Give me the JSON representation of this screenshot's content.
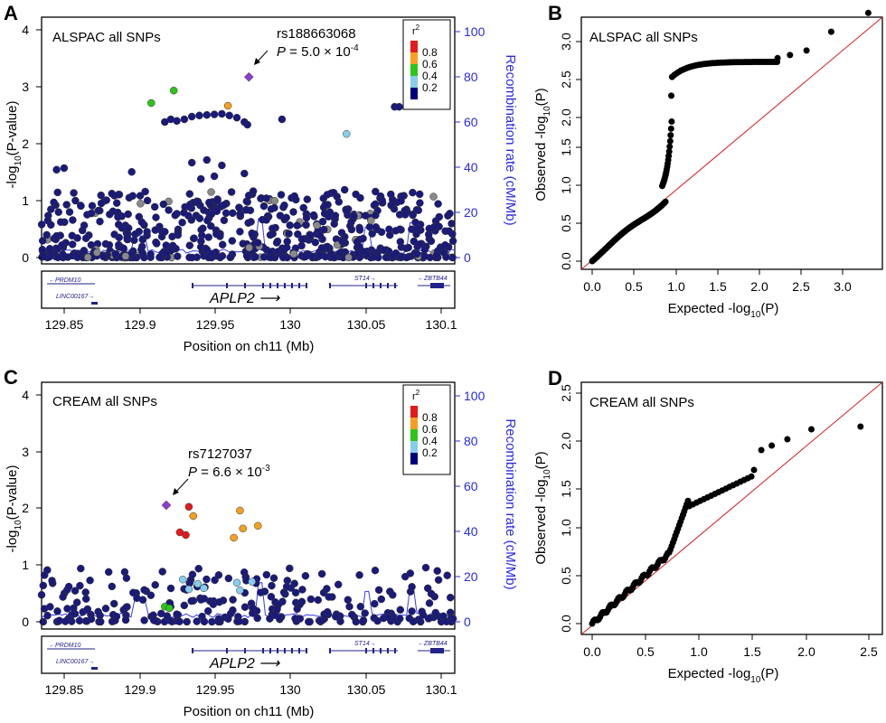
{
  "panels": [
    {
      "letter": "A",
      "title": "ALSPAC all SNPs",
      "ylabel_pre": "-log",
      "ylabel_sub": "10",
      "ylabel_post": "(P-value)",
      "y2label": "Recombination rate (cM/Mb)",
      "xlabel": "Position on ch11 (Mb)",
      "xticks": [
        "129.85",
        "129.9",
        "129.95",
        "130",
        "130.05",
        "130.1"
      ],
      "yticks": [
        "0",
        "1",
        "2",
        "3",
        "4"
      ],
      "y2ticks": [
        "0",
        "20",
        "40",
        "60",
        "80",
        "100"
      ],
      "lead_snp": "rs188663068",
      "lead_p_prefix": "P",
      "lead_p_value": " = 5.0 × 10",
      "lead_p_exp": "-4",
      "legend_title": "r",
      "legend_title_sup": "2",
      "legend_ticks": [
        "0.8",
        "0.6",
        "0.4",
        "0.2"
      ],
      "genes": [
        "PRDM10",
        "LINC00167",
        "APLP2",
        "ST14",
        "ZBTB44"
      ]
    },
    {
      "letter": "C",
      "title": "CREAM all SNPs",
      "ylabel_pre": "-log",
      "ylabel_sub": "10",
      "ylabel_post": "(P-value)",
      "y2label": "Recombination rate (cM/Mb)",
      "xlabel": "Position on ch11 (Mb)",
      "xticks": [
        "129.85",
        "129.9",
        "129.95",
        "130",
        "130.05",
        "130.1"
      ],
      "yticks": [
        "0",
        "1",
        "2",
        "3",
        "4"
      ],
      "y2ticks": [
        "0",
        "20",
        "40",
        "60",
        "80",
        "100"
      ],
      "lead_snp": "rs7127037",
      "lead_p_prefix": "P",
      "lead_p_value": " = 6.6 × 10",
      "lead_p_exp": "-3",
      "legend_title": "r",
      "legend_title_sup": "2",
      "legend_ticks": [
        "0.8",
        "0.6",
        "0.4",
        "0.2"
      ],
      "genes": [
        "PRDM10",
        "LINC00167",
        "APLP2",
        "ST14",
        "ZBTB44"
      ]
    },
    {
      "letter": "B",
      "title": "ALSPAC all SNPs",
      "xlabel_pre": "Expected -log",
      "xlabel_sub": "10",
      "xlabel_post": "(P)",
      "ylabel_pre": "Observed -log",
      "ylabel_sub": "10",
      "ylabel_post": "(P)",
      "xticks": [
        "0.0",
        "0.5",
        "1.0",
        "1.5",
        "2.0",
        "2.5",
        "3.0"
      ],
      "yticks": [
        "0.0",
        "0.5",
        "1.0",
        "1.5",
        "2.0",
        "2.5",
        "3.0"
      ]
    },
    {
      "letter": "D",
      "title": "CREAM all SNPs",
      "xlabel_pre": "Expected -log",
      "xlabel_sub": "10",
      "xlabel_post": "(P)",
      "ylabel_pre": "Observed -log",
      "ylabel_sub": "10",
      "ylabel_post": "(P)",
      "xticks": [
        "0.0",
        "0.5",
        "1.0",
        "1.5",
        "2.0",
        "2.5"
      ],
      "yticks": [
        "0.0",
        "0.5",
        "1.0",
        "1.5",
        "2.0",
        "2.5"
      ]
    }
  ],
  "colors": {
    "snp_fill": "#1a1a7a",
    "snp_grey": "#8a8a8a",
    "recomb": "#3a3aef",
    "lead": "#8a3dcf",
    "qq_line": "#d22020",
    "r2_08": "#e31a1c",
    "r2_06": "#f5a020",
    "r2_04": "#2ec41a",
    "r2_02": "#87ceeb",
    "r2_00": "#00007a"
  },
  "chart_data": [
    {
      "type": "scatter",
      "name": "A",
      "x_range": [
        129.84,
        130.115
      ],
      "ylim": [
        0,
        4.2
      ],
      "y2lim": [
        0,
        105
      ],
      "highlights": [
        {
          "x": 129.978,
          "y": 3.33,
          "r2": "lead"
        },
        {
          "x": 129.913,
          "y": 2.85,
          "r2": "0.4-0.6"
        },
        {
          "x": 129.928,
          "y": 3.08,
          "r2": "0.4-0.6"
        },
        {
          "x": 129.964,
          "y": 2.8,
          "r2": "0.6-0.8"
        },
        {
          "x": 130.043,
          "y": 2.28,
          "r2": "0.2-0.4"
        }
      ],
      "cluster_points": [
        [
          129.93,
          2.52
        ],
        [
          129.935,
          2.55
        ],
        [
          129.94,
          2.6
        ],
        [
          129.945,
          2.62
        ],
        [
          129.95,
          2.63
        ],
        [
          129.955,
          2.64
        ],
        [
          129.96,
          2.65
        ],
        [
          129.965,
          2.62
        ],
        [
          129.97,
          2.58
        ],
        [
          129.975,
          2.5
        ],
        [
          129.977,
          2.45
        ],
        [
          129.922,
          2.5
        ],
        [
          129.926,
          2.55
        ],
        [
          129.94,
          1.75
        ],
        [
          129.95,
          1.8
        ],
        [
          129.96,
          1.7
        ],
        [
          129.946,
          1.45
        ],
        [
          129.955,
          1.5
        ],
        [
          129.975,
          1.55
        ],
        [
          130.0,
          2.55
        ],
        [
          130.075,
          2.78
        ],
        [
          130.078,
          2.78
        ],
        [
          129.85,
          1.62
        ],
        [
          129.855,
          1.65
        ],
        [
          129.9,
          1.58
        ]
      ]
    },
    {
      "type": "scatter",
      "name": "C",
      "x_range": [
        129.84,
        130.115
      ],
      "ylim": [
        0,
        4.2
      ],
      "y2lim": [
        0,
        105
      ],
      "highlights": [
        {
          "x": 129.923,
          "y": 2.15,
          "r2": "lead"
        },
        {
          "x": 129.938,
          "y": 2.12,
          "r2": "0.8-1.0"
        },
        {
          "x": 129.932,
          "y": 1.65,
          "r2": "0.8-1.0"
        },
        {
          "x": 129.936,
          "y": 1.6,
          "r2": "0.8-1.0"
        },
        {
          "x": 129.941,
          "y": 1.95,
          "r2": "0.6-0.8"
        },
        {
          "x": 129.972,
          "y": 2.05,
          "r2": "0.6-0.8"
        },
        {
          "x": 129.974,
          "y": 1.72,
          "r2": "0.6-0.8"
        },
        {
          "x": 129.968,
          "y": 1.55,
          "r2": "0.6-0.8"
        },
        {
          "x": 129.984,
          "y": 1.77,
          "r2": "0.6-0.8"
        },
        {
          "x": 129.922,
          "y": 0.28,
          "r2": "0.4-0.6"
        },
        {
          "x": 129.925,
          "y": 0.25,
          "r2": "0.4-0.6"
        },
        {
          "x": 129.934,
          "y": 0.78,
          "r2": "0.2-0.4"
        },
        {
          "x": 129.938,
          "y": 0.6,
          "r2": "0.2-0.4"
        },
        {
          "x": 129.944,
          "y": 0.7,
          "r2": "0.2-0.4"
        },
        {
          "x": 129.948,
          "y": 0.62,
          "r2": "0.2-0.4"
        },
        {
          "x": 129.97,
          "y": 0.72,
          "r2": "0.2-0.4"
        },
        {
          "x": 129.972,
          "y": 0.58,
          "r2": "0.2-0.4"
        },
        {
          "x": 129.98,
          "y": 0.74,
          "r2": "0.2-0.4"
        }
      ]
    },
    {
      "type": "scatter",
      "name": "B",
      "xlim": [
        0,
        3.4
      ],
      "ylim": [
        0,
        3.4
      ],
      "reference_line": "y = x"
    },
    {
      "type": "scatter",
      "name": "D",
      "xlim": [
        0,
        2.65
      ],
      "ylim": [
        0,
        2.65
      ],
      "reference_line": "y = x"
    }
  ]
}
